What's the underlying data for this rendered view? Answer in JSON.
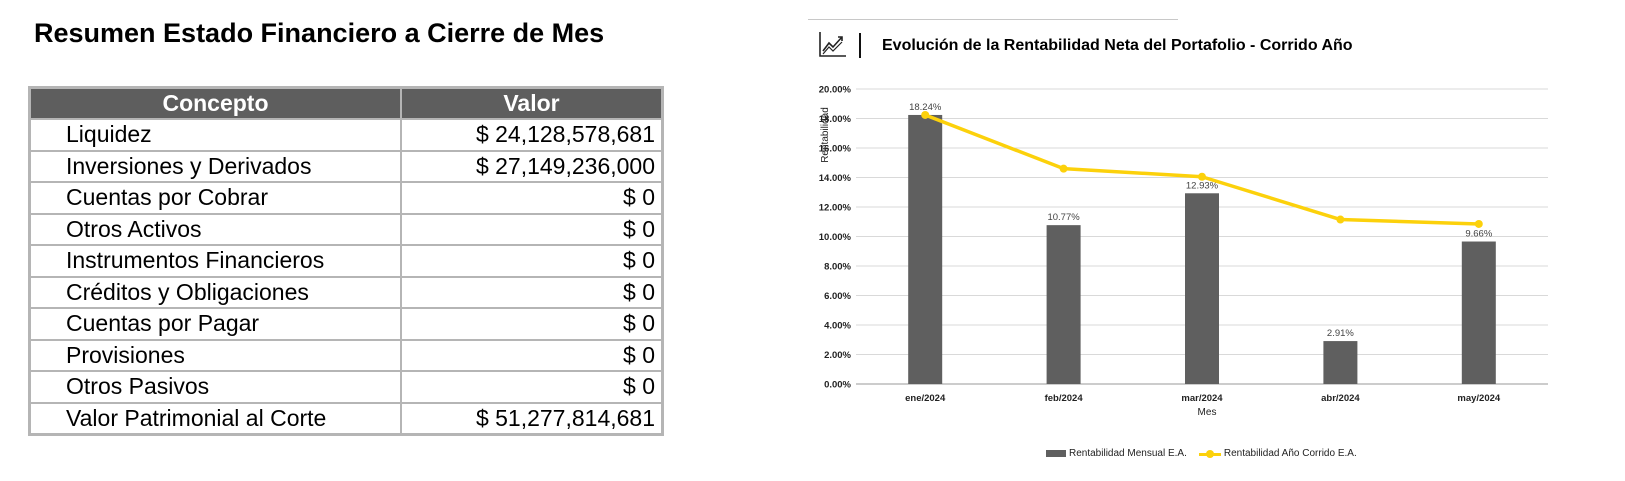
{
  "summary": {
    "title": "Resumen Estado Financiero a Cierre de Mes",
    "headers": {
      "concept": "Concepto",
      "value": "Valor"
    },
    "rows": [
      {
        "concept": "Liquidez",
        "value": "$ 24,128,578,681"
      },
      {
        "concept": "Inversiones y Derivados",
        "value": "$ 27,149,236,000"
      },
      {
        "concept": "Cuentas por Cobrar",
        "value": "$ 0"
      },
      {
        "concept": "Otros Activos",
        "value": "$ 0"
      },
      {
        "concept": "Instrumentos Financieros",
        "value": "$ 0"
      },
      {
        "concept": "Créditos y Obligaciones",
        "value": "$ 0"
      },
      {
        "concept": "Cuentas por Pagar",
        "value": "$ 0"
      },
      {
        "concept": "Provisiones",
        "value": "$ 0"
      },
      {
        "concept": "Otros Pasivos",
        "value": "$ 0"
      },
      {
        "concept": "Valor Patrimonial al Corte",
        "value": "$ 51,277,814,681"
      }
    ]
  },
  "chart_panel": {
    "icon": "trend-chart-icon"
  },
  "chart_data": {
    "type": "bar",
    "title": "Evolución de la Rentabilidad Neta del Portafolio - Corrido Año",
    "xlabel": "Mes",
    "ylabel": "Rentabilidad",
    "categories": [
      "ene/2024",
      "feb/2024",
      "mar/2024",
      "abr/2024",
      "may/2024"
    ],
    "ylim": [
      0,
      20
    ],
    "yticks": [
      0,
      2,
      4,
      6,
      8,
      10,
      12,
      14,
      16,
      18,
      20
    ],
    "ytick_labels": [
      "0.00%",
      "2.00%",
      "4.00%",
      "6.00%",
      "8.00%",
      "10.00%",
      "12.00%",
      "14.00%",
      "16.00%",
      "18.00%",
      "20.00%"
    ],
    "grid": true,
    "legend_position": "bottom",
    "series": [
      {
        "name": "Rentabilidad Mensual E.A.",
        "kind": "bar",
        "color": "#5f5f5f",
        "values": [
          18.24,
          10.77,
          12.93,
          2.91,
          9.66
        ],
        "data_labels": [
          "18.24%",
          "10.77%",
          "12.93%",
          "2.91%",
          "9.66%"
        ]
      },
      {
        "name": "Rentabilidad Año Corrido E.A.",
        "kind": "line",
        "color": "#fcd10b",
        "values": [
          18.24,
          14.6,
          14.05,
          11.15,
          10.85
        ]
      }
    ]
  }
}
